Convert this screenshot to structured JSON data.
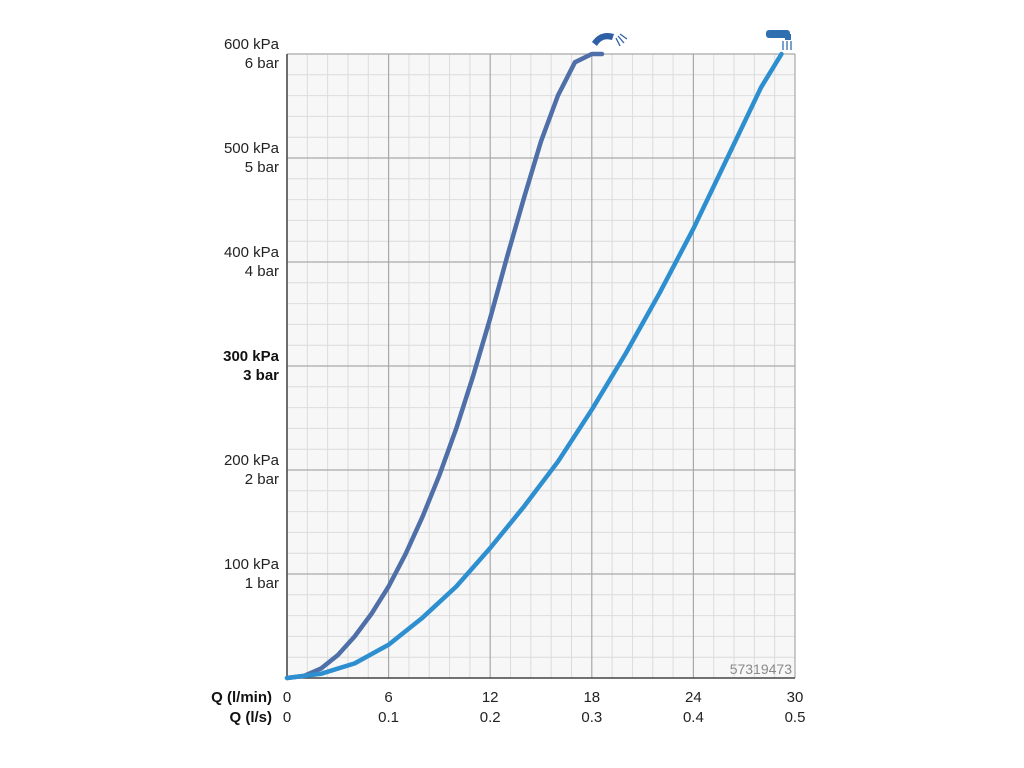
{
  "chart_data": {
    "type": "line",
    "watermark": "57319473",
    "x_axes": [
      {
        "label": "Q (l/min)",
        "ticks": [
          "0",
          "6",
          "12",
          "18",
          "24",
          "30"
        ]
      },
      {
        "label": "Q (l/s)",
        "ticks": [
          "0",
          "0.1",
          "0.2",
          "0.3",
          "0.4",
          "0.5"
        ]
      }
    ],
    "x_range": [
      0,
      30
    ],
    "y_range": [
      0,
      600
    ],
    "y_ticks": [
      {
        "value": 600,
        "kpa": "600 kPa",
        "bar": "6 bar",
        "bold": false
      },
      {
        "value": 500,
        "kpa": "500 kPa",
        "bar": "5 bar",
        "bold": false
      },
      {
        "value": 400,
        "kpa": "400 kPa",
        "bar": "4 bar",
        "bold": false
      },
      {
        "value": 300,
        "kpa": "300 kPa",
        "bar": "3 bar",
        "bold": true
      },
      {
        "value": 200,
        "kpa": "200 kPa",
        "bar": "2 bar",
        "bold": false
      },
      {
        "value": 100,
        "kpa": "100 kPa",
        "bar": "1 bar",
        "bold": false
      }
    ],
    "grid": true,
    "series": [
      {
        "icon": "hand-shower-icon",
        "color": "#4f6fa8",
        "x": [
          0,
          1,
          2,
          3,
          4,
          5,
          6,
          7,
          8,
          9,
          10,
          11,
          12,
          13,
          14,
          15,
          16,
          17,
          18,
          18.6
        ],
        "y": [
          0,
          2,
          9,
          22,
          40,
          62,
          88,
          119,
          155,
          195,
          240,
          291,
          346,
          405,
          462,
          516,
          560,
          592,
          600,
          600
        ]
      },
      {
        "icon": "head-shower-icon",
        "color": "#2e8fd0",
        "x": [
          0,
          2,
          4,
          6,
          8,
          10,
          12,
          14,
          16,
          18,
          20,
          22,
          24,
          26,
          28,
          29.2
        ],
        "y": [
          0,
          4,
          14,
          32,
          58,
          88,
          125,
          165,
          208,
          258,
          312,
          370,
          432,
          500,
          568,
          600
        ]
      }
    ]
  }
}
